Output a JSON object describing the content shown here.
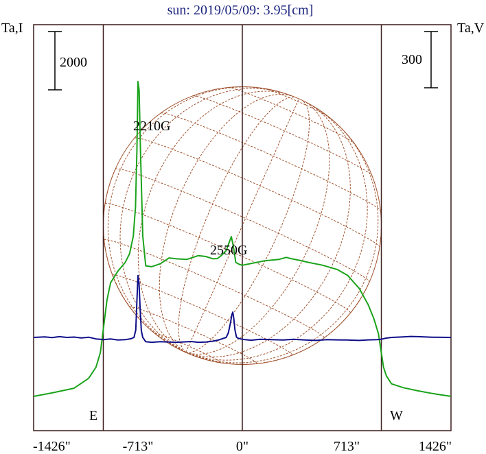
{
  "chart_data": {
    "type": "line",
    "title": "sun: 2019/05/09: 3.95[cm]",
    "left_axis_label": "Ta,I",
    "right_axis_label": "Ta,V",
    "left_scale_bar": "2000",
    "right_scale_bar": "300",
    "x_ticks": [
      {
        "value": -1426,
        "label": "-1426\""
      },
      {
        "value": -713,
        "label": "-713\""
      },
      {
        "value": 0,
        "label": "0\""
      },
      {
        "value": 713,
        "label": "713\""
      },
      {
        "value": 1426,
        "label": "1426\""
      }
    ],
    "xlim": [
      -1426,
      1426
    ],
    "limb_markers": [
      {
        "x": -950,
        "label": "E"
      },
      {
        "x": 0,
        "label": ""
      },
      {
        "x": 950,
        "label": "W"
      }
    ],
    "annotations": [
      {
        "text": "2210G",
        "x": -713,
        "level": 2210
      },
      {
        "text": "2550G",
        "x": -65,
        "level": 2550
      }
    ],
    "disk_radius_arcsec": 950,
    "colors": {
      "title": "#1a237e",
      "intensity": "#1aa31a",
      "polarization": "#0d0d8a",
      "disk": "#a0522d",
      "frame": "#3a1a1a"
    },
    "series": [
      {
        "name": "I",
        "y_axis": "left",
        "x": [
          -1426,
          -1300,
          -1150,
          -1050,
          -1000,
          -970,
          -950,
          -925,
          -900,
          -850,
          -800,
          -770,
          -745,
          -730,
          -720,
          -713,
          -705,
          -695,
          -680,
          -660,
          -620,
          -560,
          -500,
          -450,
          -380,
          -300,
          -250,
          -200,
          -170,
          -140,
          -110,
          -90,
          -75,
          -65,
          -55,
          -45,
          -20,
          0,
          50,
          150,
          250,
          300,
          330,
          380,
          450,
          550,
          650,
          720,
          800,
          860,
          900,
          930,
          950,
          965,
          985,
          1020,
          1100,
          1200,
          1300,
          1426
        ],
        "y": [
          0,
          120,
          280,
          620,
          1000,
          1500,
          2300,
          3300,
          3900,
          4300,
          4600,
          4900,
          5500,
          6500,
          8500,
          10800,
          10500,
          8300,
          5500,
          4480,
          4450,
          4550,
          4750,
          4720,
          4700,
          4830,
          4800,
          4720,
          4730,
          4850,
          5000,
          5280,
          5480,
          5250,
          4950,
          4600,
          4530,
          4500,
          4550,
          4650,
          4700,
          4770,
          4730,
          4680,
          4600,
          4500,
          4350,
          4150,
          3700,
          3150,
          2650,
          2150,
          1500,
          1000,
          700,
          430,
          300,
          190,
          100,
          0
        ]
      },
      {
        "name": "V",
        "y_axis": "right",
        "x": [
          -1426,
          -1350,
          -1300,
          -1250,
          -1200,
          -1150,
          -1100,
          -1050,
          -1000,
          -970,
          -950,
          -900,
          -850,
          -800,
          -760,
          -740,
          -728,
          -720,
          -713,
          -706,
          -698,
          -690,
          -680,
          -660,
          -620,
          -560,
          -500,
          -450,
          -400,
          -350,
          -300,
          -250,
          -200,
          -160,
          -130,
          -110,
          -95,
          -80,
          -72,
          -65,
          -58,
          -50,
          -40,
          -30,
          -10,
          20,
          60,
          120,
          200,
          280,
          350,
          420,
          500,
          580,
          650,
          720,
          800,
          860,
          920,
          950,
          980,
          1020,
          1100,
          1150,
          1200,
          1300,
          1426
        ],
        "y": [
          0,
          3,
          -1,
          4,
          0,
          2,
          -3,
          1,
          -8,
          -10,
          -12,
          -8,
          -14,
          -12,
          -7,
          0,
          40,
          200,
          330,
          290,
          150,
          35,
          0,
          -23,
          -26,
          -23,
          -25,
          -26,
          -24,
          -22,
          -26,
          -25,
          -20,
          -13,
          -5,
          0,
          25,
          80,
          120,
          135,
          100,
          40,
          2,
          -4,
          -8,
          -12,
          -15,
          -10,
          -12,
          -14,
          -10,
          -13,
          -16,
          -12,
          -13,
          -14,
          -16,
          -13,
          -12,
          -10,
          -4,
          0,
          3,
          5,
          4,
          1,
          0
        ]
      }
    ]
  }
}
